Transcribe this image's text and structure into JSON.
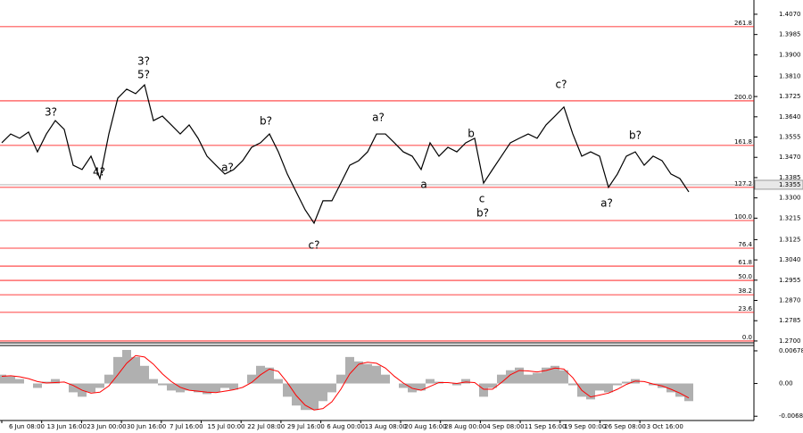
{
  "chart_data": [
    {
      "type": "line",
      "color": "#000000",
      "values": [
        1.3531,
        1.3568,
        1.355,
        1.3576,
        1.3493,
        1.3568,
        1.3624,
        1.3587,
        1.3437,
        1.3419,
        1.3475,
        1.3381,
        1.3568,
        1.3718,
        1.3756,
        1.3737,
        1.3774,
        1.3624,
        1.3643,
        1.3606,
        1.3568,
        1.3606,
        1.355,
        1.3475,
        1.3437,
        1.34,
        1.3419,
        1.3456,
        1.3512,
        1.3531,
        1.3568,
        1.3493,
        1.34,
        1.3325,
        1.325,
        1.3194,
        1.3288,
        1.3288,
        1.3362,
        1.3437,
        1.3456,
        1.3493,
        1.3568,
        1.3568,
        1.3531,
        1.3493,
        1.3475,
        1.3419,
        1.3531,
        1.3475,
        1.3512,
        1.3493,
        1.3531,
        1.355,
        1.3362,
        1.3419,
        1.3475,
        1.3531,
        1.355,
        1.3568,
        1.355,
        1.3606,
        1.3643,
        1.3681,
        1.3568,
        1.3475,
        1.3493,
        1.3475,
        1.3344,
        1.34,
        1.3475,
        1.3493,
        1.3437,
        1.3475,
        1.3456,
        1.34,
        1.3381,
        1.3325
      ],
      "ylim": [
        1.2696,
        1.4111
      ],
      "yticks": [
        {
          "value": 1.407,
          "label": "1.4070"
        },
        {
          "value": 1.3985,
          "label": "1.3985"
        },
        {
          "value": 1.39,
          "label": "1.3900"
        },
        {
          "value": 1.381,
          "label": "1.3810"
        },
        {
          "value": 1.3725,
          "label": "1.3725"
        },
        {
          "value": 1.364,
          "label": "1.3640"
        },
        {
          "value": 1.3555,
          "label": "1.3555"
        },
        {
          "value": 1.347,
          "label": "1.3470"
        },
        {
          "value": 1.3385,
          "label": "1.3385"
        },
        {
          "value": 1.33,
          "label": "1.3300"
        },
        {
          "value": 1.3215,
          "label": "1.3215"
        },
        {
          "value": 1.3125,
          "label": "1.3125"
        },
        {
          "value": 1.304,
          "label": "1.3040"
        },
        {
          "value": 1.2955,
          "label": "1.2955"
        },
        {
          "value": 1.287,
          "label": "1.2870"
        },
        {
          "value": 1.2785,
          "label": "1.2785"
        },
        {
          "value": 1.27,
          "label": "1.2700"
        }
      ],
      "x_labels": [
        "6 Jun 08:00",
        "13 Jun 16:00",
        "23 Jun 00:00",
        "30 Jun 16:00",
        "7 Jul 16:00",
        "15 Jul 00:00",
        "22 Jul 08:00",
        "29 Jul 16:00",
        "6 Aug 00:00",
        "13 Aug 08:00",
        "20 Aug 16:00",
        "28 Aug 00:00",
        "4 Sep 08:00",
        "11 Sep 16:00",
        "19 Sep 00:00",
        "26 Sep 08:00",
        "3 Oct 16:00"
      ],
      "fib_levels": [
        {
          "label": "261.8",
          "value": 1.4018
        },
        {
          "label": "200.0",
          "value": 1.3707
        },
        {
          "label": "161.8",
          "value": 1.352
        },
        {
          "label": "127.2",
          "value": 1.3344
        },
        {
          "label": "100.0",
          "value": 1.3205
        },
        {
          "label": "76.4",
          "value": 1.3089
        },
        {
          "label": "61.8",
          "value": 1.3014
        },
        {
          "label": "50.0",
          "value": 1.2954
        },
        {
          "label": "38.2",
          "value": 1.2894
        },
        {
          "label": "23.6",
          "value": 1.282
        },
        {
          "label": "0.0",
          "value": 1.27
        }
      ],
      "fib_color": "#ff0000",
      "current_price": {
        "value": 1.3355,
        "label": "1.3355"
      },
      "annotations": [
        {
          "text": "3?",
          "color": "#ff0000"
        },
        {
          "text": "3?",
          "color": "#0000ff"
        },
        {
          "text": "5?",
          "color": "#ff0000"
        },
        {
          "text": "4?",
          "color": "#ff0000"
        },
        {
          "text": "a?",
          "color": "#ff0000"
        },
        {
          "text": "b?",
          "color": "#ff0000"
        },
        {
          "text": "c?",
          "color": "#ff0000"
        },
        {
          "text": "a?",
          "color": "#ff0000"
        },
        {
          "text": "a",
          "color": "#0000ff"
        },
        {
          "text": "b",
          "color": "#0000ff"
        },
        {
          "text": "c",
          "color": "#0000ff"
        },
        {
          "text": "b?",
          "color": "#ff0000"
        },
        {
          "text": "c?",
          "color": "#ff0000"
        },
        {
          "text": "a?",
          "color": "#ff0000"
        },
        {
          "text": "b?",
          "color": "#ff0000"
        }
      ]
    },
    {
      "type": "macd",
      "color": "#b0b0b0",
      "signal_color": "#ff0000",
      "values": [
        0.00183,
        0.00146,
        0.00092,
        0,
        -0.00092,
        0.00037,
        0.00092,
        0,
        -0.00183,
        -0.00275,
        -0.00183,
        -0.00092,
        0.00183,
        0.0055,
        0.00696,
        0.0055,
        0.00366,
        0.00092,
        -0.00037,
        -0.00146,
        -0.00183,
        -0.00146,
        -0.00183,
        -0.0022,
        -0.00183,
        -0.00092,
        -0.00128,
        0,
        0.00183,
        0.00366,
        0.0033,
        0.00092,
        -0.00275,
        -0.00458,
        -0.0055,
        -0.0055,
        -0.00366,
        -0.00183,
        0.00183,
        0.0055,
        0.00458,
        0.00403,
        0.00366,
        0.00183,
        0,
        -0.00092,
        -0.00183,
        -0.00146,
        0.00092,
        0.00037,
        0,
        -0.00037,
        0.00092,
        0,
        -0.00275,
        -0.00092,
        0.00183,
        0.00275,
        0.0033,
        0.00183,
        0.0022,
        0.0033,
        0.00366,
        0.00275,
        -0.00037,
        -0.00275,
        -0.0033,
        -0.00146,
        -0.00183,
        -0.00037,
        0.00037,
        0.00092,
        0,
        -0.00037,
        -0.00092,
        -0.00183,
        -0.00275,
        -0.00366
      ],
      "signal": [
        0.0015,
        0.0016,
        0.0014,
        0.001,
        0.0004,
        0.0001,
        0.0002,
        0.0003,
        -0.0004,
        -0.0014,
        -0.002,
        -0.0018,
        -0.0005,
        0.0018,
        0.0042,
        0.0058,
        0.0055,
        0.004,
        0.002,
        0.0004,
        -0.0008,
        -0.0014,
        -0.0016,
        -0.0018,
        -0.0019,
        -0.0016,
        -0.0013,
        -0.0008,
        0.0002,
        0.0018,
        0.003,
        0.0025,
        0.0002,
        -0.0025,
        -0.0045,
        -0.0055,
        -0.0052,
        -0.0038,
        -0.0012,
        0.002,
        0.004,
        0.0044,
        0.0042,
        0.0032,
        0.0015,
        0.0001,
        -0.001,
        -0.0014,
        -0.0006,
        0.0002,
        0.0002,
        0,
        0.0003,
        0.0002,
        -0.0012,
        -0.0012,
        0.0002,
        0.0018,
        0.0027,
        0.0026,
        0.0024,
        0.0027,
        0.0032,
        0.003,
        0.0012,
        -0.0014,
        -0.0028,
        -0.0024,
        -0.002,
        -0.0012,
        -0.0002,
        0.0005,
        0.0004,
        -0.0001,
        -0.0005,
        -0.0012,
        -0.002,
        -0.003
      ],
      "ylim": [
        -0.0075,
        0.0077
      ],
      "yticks": [
        {
          "value": 0.00678,
          "label": "0.00678"
        },
        {
          "value": 0,
          "label": "0.00"
        },
        {
          "value": -0.0068,
          "label": "-0.0068"
        }
      ]
    }
  ]
}
